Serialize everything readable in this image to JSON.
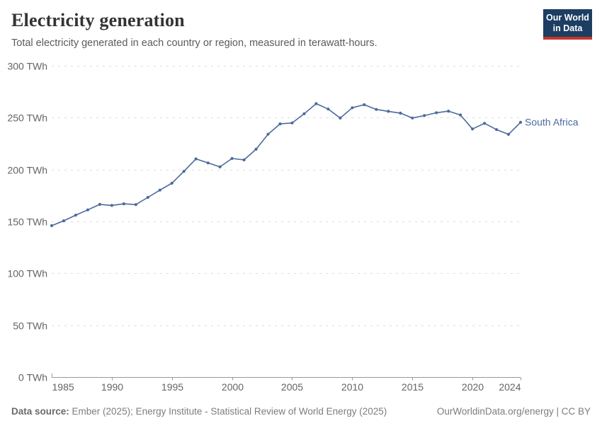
{
  "header": {
    "title": "Electricity generation",
    "subtitle": "Total electricity generated in each country or region, measured in terawatt-hours.",
    "logo": {
      "line1": "Our World",
      "line2": "in Data"
    }
  },
  "chart_data": {
    "type": "line",
    "title": "Electricity generation",
    "unit": "TWh",
    "xlabel": "",
    "ylabel": "",
    "xlim": [
      1985,
      2024
    ],
    "ylim": [
      0,
      300
    ],
    "grid": "horizontal-dashed",
    "legend_position": "end-of-line",
    "x_ticks": [
      1985,
      1990,
      1995,
      2000,
      2005,
      2010,
      2015,
      2020,
      2024
    ],
    "y_ticks": [
      0,
      50,
      100,
      150,
      200,
      250,
      300
    ],
    "y_tick_suffix": " TWh",
    "series": [
      {
        "name": "South Africa",
        "color": "#4C6A9C",
        "x": [
          1985,
          1986,
          1987,
          1988,
          1989,
          1990,
          1991,
          1992,
          1993,
          1994,
          1995,
          1996,
          1997,
          1998,
          1999,
          2000,
          2001,
          2002,
          2003,
          2004,
          2005,
          2006,
          2007,
          2008,
          2009,
          2010,
          2011,
          2012,
          2013,
          2014,
          2015,
          2016,
          2017,
          2018,
          2019,
          2020,
          2021,
          2022,
          2023,
          2024
        ],
        "values": [
          145.9,
          150.6,
          156.1,
          161.1,
          166.4,
          165.4,
          167.0,
          166.2,
          173.2,
          180.2,
          186.8,
          198.3,
          210.3,
          206.4,
          202.6,
          210.7,
          209.3,
          219.6,
          234.1,
          244.0,
          244.9,
          253.8,
          263.5,
          258.3,
          249.6,
          259.6,
          262.5,
          257.9,
          256.1,
          254.4,
          249.7,
          252.0,
          254.7,
          256.3,
          252.6,
          239.1,
          244.6,
          238.5,
          233.9,
          245.5
        ]
      }
    ]
  },
  "footer": {
    "source_label": "Data source:",
    "source_text": " Ember (2025); Energy Institute - Statistical Review of World Energy (2025)",
    "credit": "OurWorldinData.org/energy | CC BY"
  },
  "colors": {
    "line": "#4C6A9C",
    "grid": "#dcdcdc",
    "axis": "#999999",
    "tick_label": "#646464",
    "title": "#333333",
    "subtitle": "#5b5b5b",
    "footer": "#7d7d7d",
    "logo_bg": "#1d3d63",
    "logo_bar": "#c5362b"
  }
}
